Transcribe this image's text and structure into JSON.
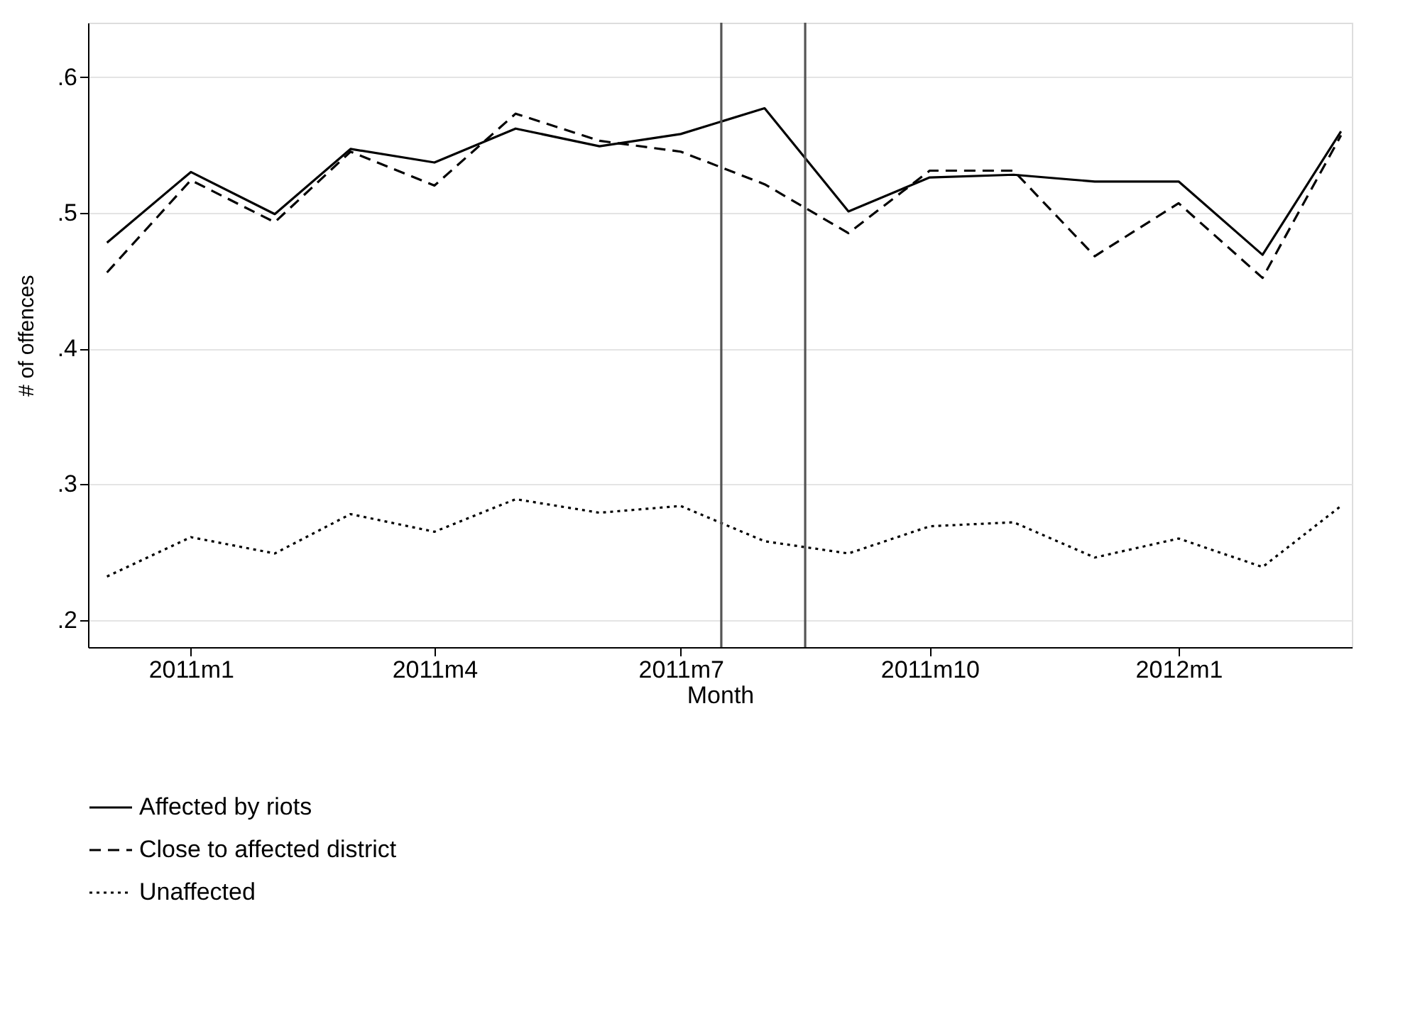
{
  "chart_data": {
    "type": "line",
    "xlabel": "Month",
    "ylabel": "# of offences",
    "x": [
      "2010-12",
      "2011-01",
      "2011-02",
      "2011-03",
      "2011-04",
      "2011-05",
      "2011-06",
      "2011-07",
      "2011-08",
      "2011-09",
      "2011-10",
      "2011-11",
      "2011-12",
      "2012-01",
      "2012-02",
      "2012-03"
    ],
    "series": [
      {
        "name": "Affected by riots",
        "color": "#000000",
        "line_style": "solid",
        "values": [
          0.478,
          0.53,
          0.499,
          0.547,
          0.537,
          0.562,
          0.549,
          0.558,
          0.577,
          0.501,
          0.526,
          0.528,
          0.523,
          0.523,
          0.469,
          0.56
        ]
      },
      {
        "name": "Close to affected district",
        "color": "#000000",
        "line_style": "dashed",
        "values": [
          0.456,
          0.524,
          0.493,
          0.545,
          0.52,
          0.573,
          0.553,
          0.545,
          0.521,
          0.485,
          0.531,
          0.531,
          0.468,
          0.507,
          0.452,
          0.557
        ]
      },
      {
        "name": "Unaffected",
        "color": "#000000",
        "line_style": "dotted",
        "values": [
          0.232,
          0.261,
          0.249,
          0.278,
          0.265,
          0.289,
          0.279,
          0.284,
          0.258,
          0.249,
          0.269,
          0.272,
          0.246,
          0.26,
          0.239,
          0.284
        ]
      }
    ],
    "xlim": [
      "2010-11-24",
      "2012-03-05"
    ],
    "xticks": [
      {
        "value": "2011-01",
        "label": "2011m1"
      },
      {
        "value": "2011-04",
        "label": "2011m4"
      },
      {
        "value": "2011-07",
        "label": "2011m7"
      },
      {
        "value": "2011-10",
        "label": "2011m10"
      },
      {
        "value": "2012-01",
        "label": "2012m1"
      }
    ],
    "ylim": [
      0.18,
      0.64
    ],
    "yticks": [
      {
        "value": 0.2,
        "label": ".2"
      },
      {
        "value": 0.3,
        "label": ".3"
      },
      {
        "value": 0.4,
        "label": ".4"
      },
      {
        "value": 0.5,
        "label": ".5"
      },
      {
        "value": 0.6,
        "label": ".6"
      }
    ],
    "ref_lines": [
      {
        "axis": "x",
        "value": "2011-07-16",
        "color": "#555555"
      },
      {
        "axis": "x",
        "value": "2011-08-16",
        "color": "#555555"
      }
    ],
    "grid": "y",
    "legend": "bottom"
  }
}
